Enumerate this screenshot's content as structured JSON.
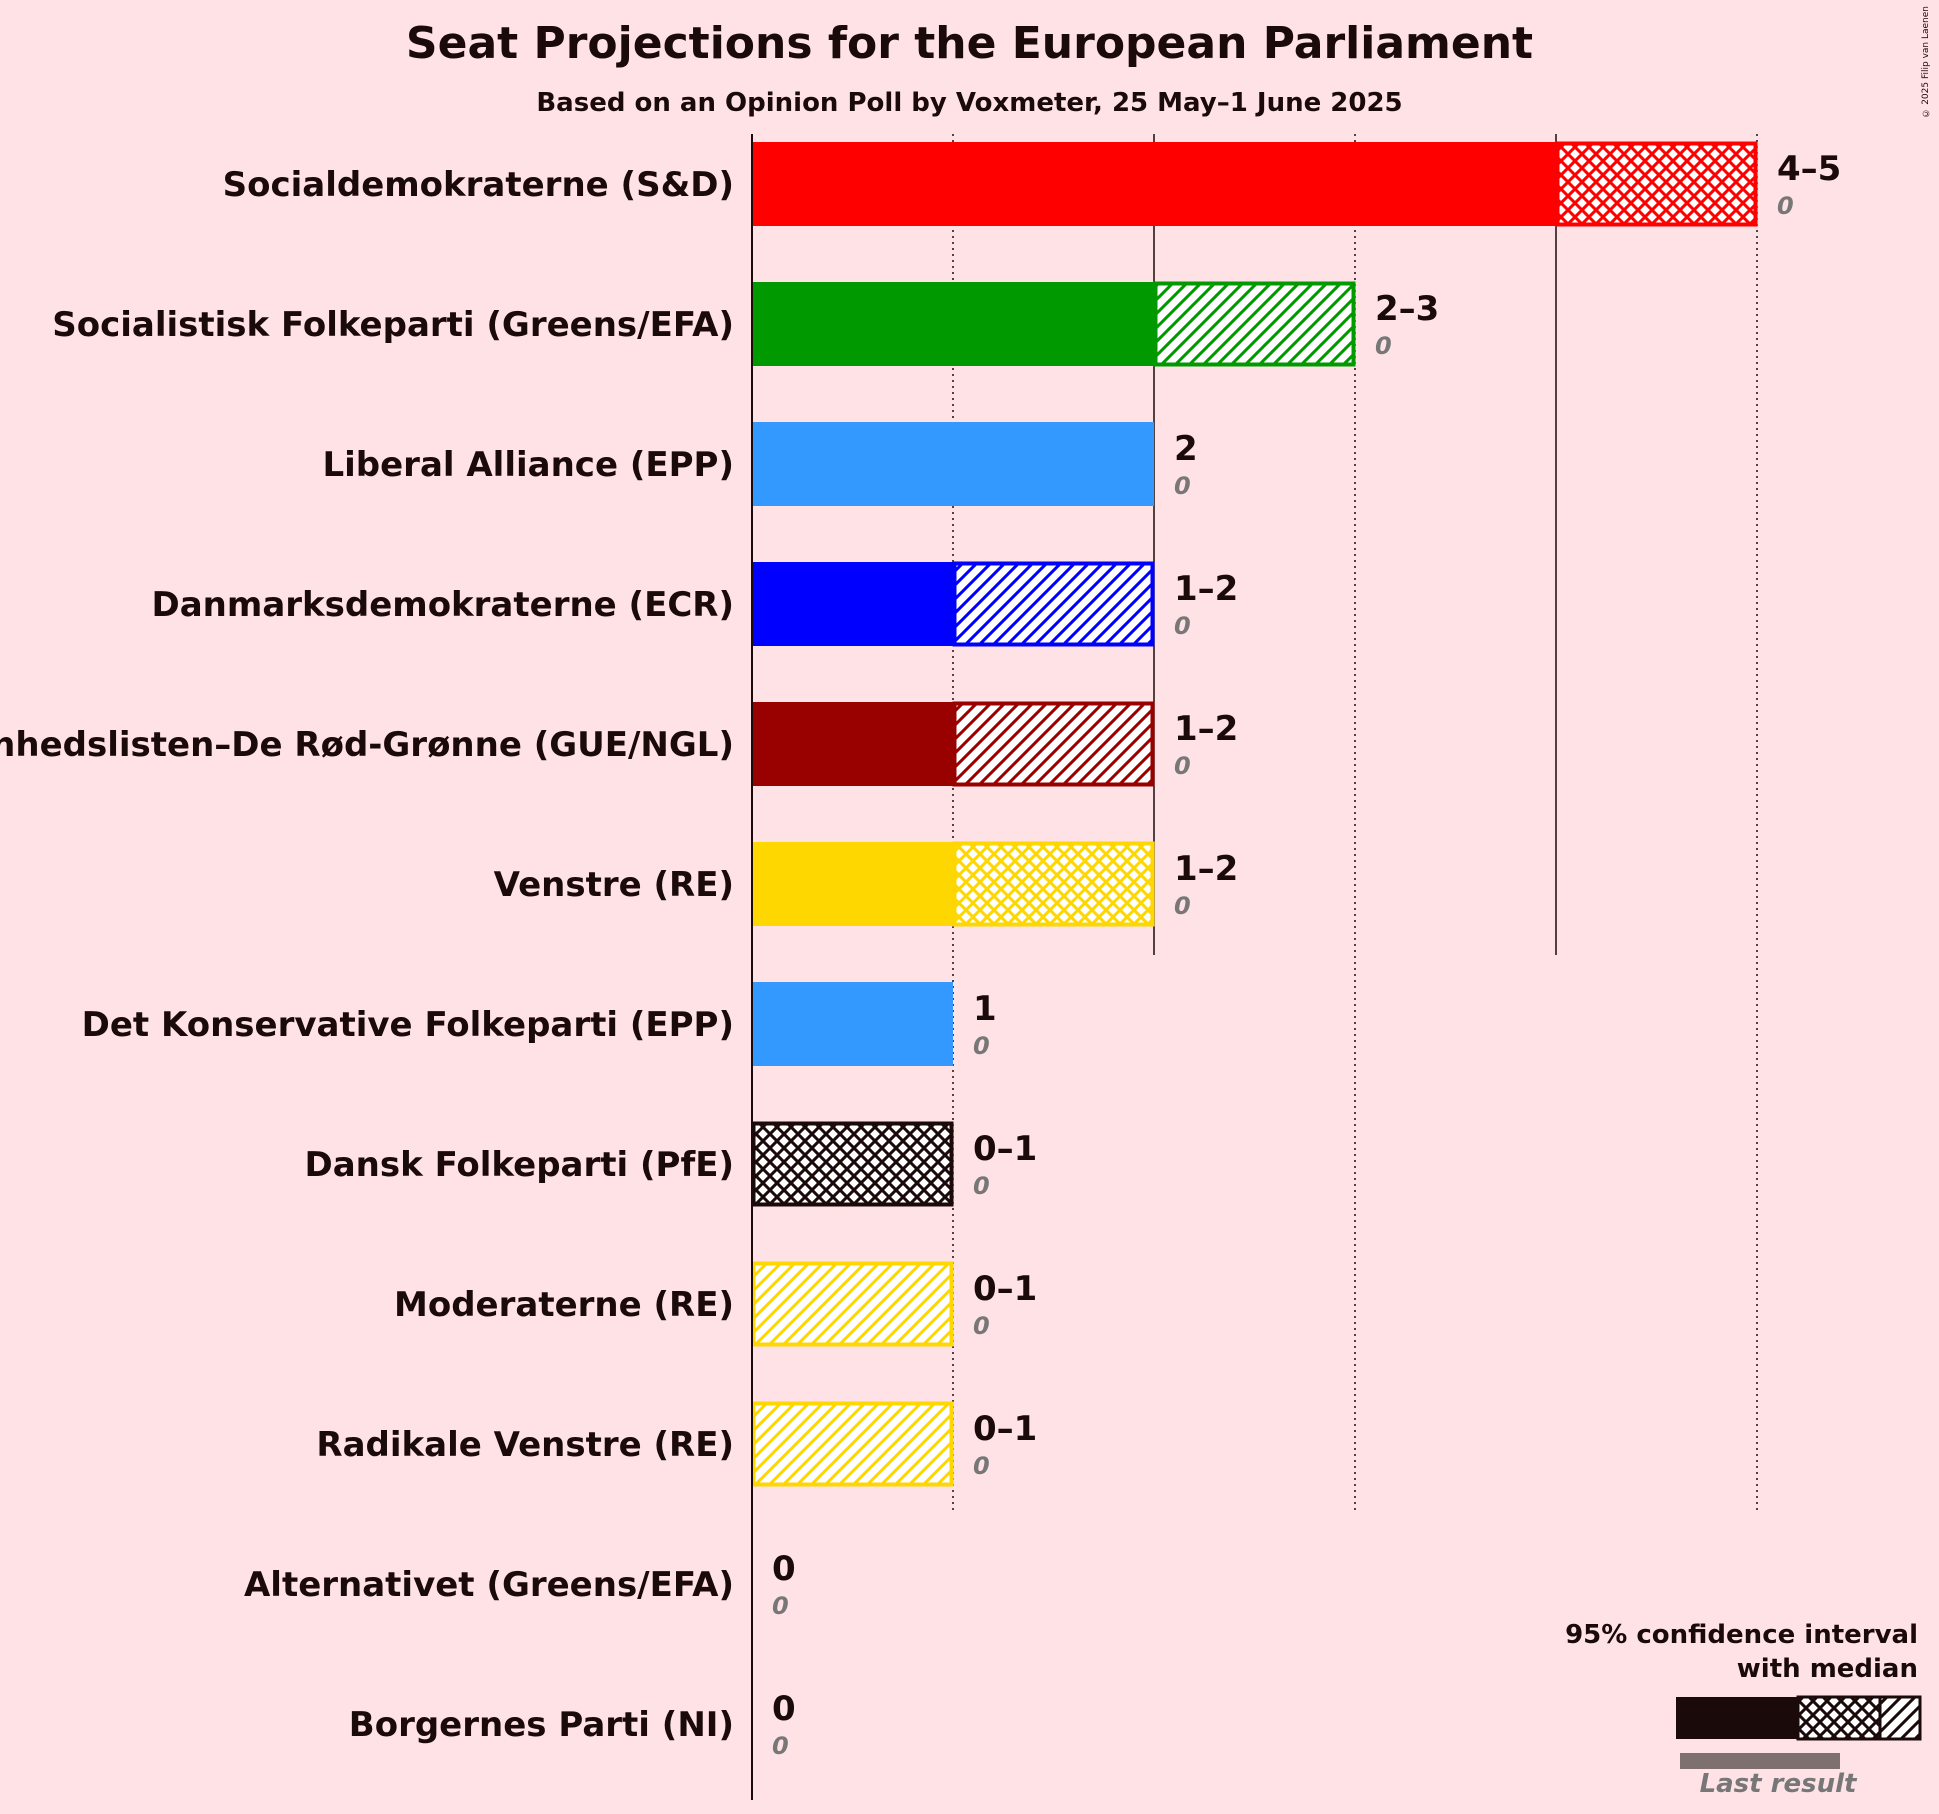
{
  "title": "Seat Projections for the European Parliament",
  "subtitle": "Based on an Opinion Poll by Voxmeter, 25 May–1 June 2025",
  "copyright": "© 2025 Filip van Laenen",
  "legend": {
    "line1": "95% confidence interval",
    "line2": "with median",
    "last_result": "Last result"
  },
  "chart_data": {
    "type": "bar",
    "orientation": "horizontal",
    "title": "Seat Projections for the European Parliament",
    "subtitle": "Based on an Opinion Poll by Voxmeter, 25 May–1 June 2025",
    "xlim": [
      0,
      5
    ],
    "grid": true,
    "legend_position": "bottom-right",
    "parties": [
      {
        "name": "Socialdemokraterne (S&D)",
        "low": 4,
        "high": 5,
        "median": 4,
        "range": "4–5",
        "last": 0,
        "last_label": "0",
        "color": "#FF0000",
        "pattern": "cross"
      },
      {
        "name": "Socialistisk Folkeparti (Greens/EFA)",
        "low": 2,
        "high": 3,
        "median": 2,
        "range": "2–3",
        "last": 0,
        "last_label": "0",
        "color": "#009900",
        "pattern": "hatch"
      },
      {
        "name": "Liberal Alliance (EPP)",
        "low": 2,
        "high": 2,
        "median": 2,
        "range": "2",
        "last": 0,
        "last_label": "0",
        "color": "#3399FF",
        "pattern": "none"
      },
      {
        "name": "Danmarksdemokraterne (ECR)",
        "low": 1,
        "high": 2,
        "median": 1,
        "range": "1–2",
        "last": 0,
        "last_label": "0",
        "color": "#0000FF",
        "pattern": "hatch"
      },
      {
        "name": "Enhedslisten–De Rød-Grønne (GUE/NGL)",
        "low": 1,
        "high": 2,
        "median": 1,
        "range": "1–2",
        "last": 0,
        "last_label": "0",
        "color": "#990000",
        "pattern": "hatch"
      },
      {
        "name": "Venstre (RE)",
        "low": 1,
        "high": 2,
        "median": 1,
        "range": "1–2",
        "last": 0,
        "last_label": "0",
        "color": "#FFD700",
        "pattern": "cross"
      },
      {
        "name": "Det Konservative Folkeparti (EPP)",
        "low": 1,
        "high": 1,
        "median": 1,
        "range": "1",
        "last": 0,
        "last_label": "0",
        "color": "#3399FF",
        "pattern": "none"
      },
      {
        "name": "Dansk Folkeparti (PfE)",
        "low": 0,
        "high": 1,
        "median": 1,
        "range": "0–1",
        "last": 0,
        "last_label": "0",
        "color": "#1a0a0a",
        "pattern": "cross"
      },
      {
        "name": "Moderaterne (RE)",
        "low": 0,
        "high": 1,
        "median": 0,
        "range": "0–1",
        "last": 0,
        "last_label": "0",
        "color": "#FFD700",
        "pattern": "hatch"
      },
      {
        "name": "Radikale Venstre (RE)",
        "low": 0,
        "high": 1,
        "median": 0,
        "range": "0–1",
        "last": 0,
        "last_label": "0",
        "color": "#FFD700",
        "pattern": "hatch"
      },
      {
        "name": "Alternativet (Greens/EFA)",
        "low": 0,
        "high": 0,
        "median": 0,
        "range": "0",
        "last": 0,
        "last_label": "0",
        "color": "#009900",
        "pattern": "none"
      },
      {
        "name": "Borgernes Parti (NI)",
        "low": 0,
        "high": 0,
        "median": 0,
        "range": "0",
        "last": 0,
        "last_label": "0",
        "color": "#999999",
        "pattern": "none"
      }
    ]
  }
}
